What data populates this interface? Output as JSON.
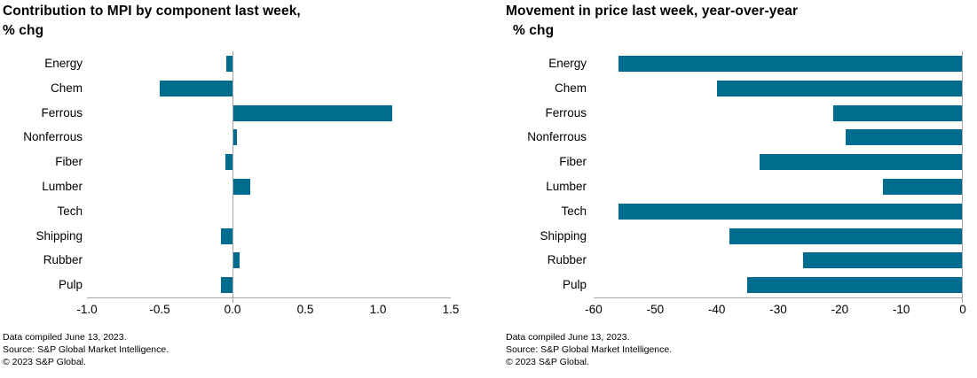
{
  "page": {
    "background": "#ffffff"
  },
  "footnotes": [
    "Data compiled June 13, 2023.",
    "Source: S&P Global Market Intelligence.",
    "© 2023 S&P Global."
  ],
  "chart_data": [
    {
      "type": "bar",
      "orientation": "horizontal",
      "title": "Contribution to MPI by component last week, % chg",
      "title_lines": [
        "Contribution to MPI by component last week,",
        "% chg"
      ],
      "categories": [
        "Energy",
        "Chem",
        "Ferrous",
        "Nonferrous",
        "Fiber",
        "Lumber",
        "Tech",
        "Shipping",
        "Rubber",
        "Pulp"
      ],
      "values": [
        -0.04,
        -0.5,
        1.1,
        0.03,
        -0.05,
        0.12,
        0.0,
        -0.08,
        0.05,
        -0.08
      ],
      "xlim": [
        -1.0,
        1.5
      ],
      "xticks": [
        -1.0,
        -0.5,
        0.0,
        0.5,
        1.0,
        1.5
      ],
      "xtick_labels": [
        "-1.0",
        "-0.5",
        "0.0",
        "0.5",
        "1.0",
        "1.5"
      ],
      "xlabel": "",
      "ylabel": "",
      "legend": "none",
      "grid": "zero-line-only",
      "bar_color": "#006d8e",
      "axis_color": "#a6a6a6"
    },
    {
      "type": "bar",
      "orientation": "horizontal",
      "title": "Movement in price last week, year-over-year % chg",
      "title_lines": [
        "Movement in price last week, year-over-year",
        "% chg"
      ],
      "categories": [
        "Energy",
        "Chem",
        "Ferrous",
        "Nonferrous",
        "Fiber",
        "Lumber",
        "Tech",
        "Shipping",
        "Rubber",
        "Pulp"
      ],
      "values": [
        -56,
        -40,
        -21,
        -19,
        -33,
        -13,
        -56,
        -38,
        -26,
        -35
      ],
      "xlim": [
        -60,
        0
      ],
      "xticks": [
        -60,
        -50,
        -40,
        -30,
        -20,
        -10,
        0
      ],
      "xtick_labels": [
        "-60",
        "-50",
        "-40",
        "-30",
        "-20",
        "-10",
        "0"
      ],
      "xlabel": "",
      "ylabel": "",
      "legend": "none",
      "grid": "zero-line-only",
      "bar_color": "#006d8e",
      "axis_color": "#a6a6a6"
    }
  ]
}
